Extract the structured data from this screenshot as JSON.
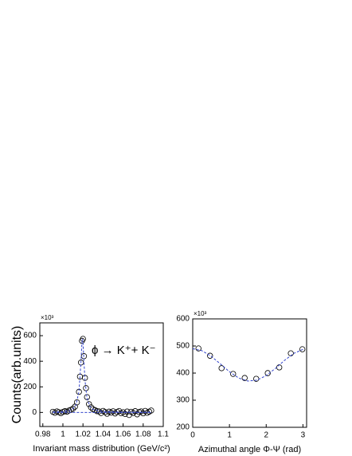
{
  "chart_data": [
    {
      "type": "scatter",
      "xlabel": "Invariant mass distribution (GeV/c²)",
      "ylabel": "Counts(arb.units)",
      "y_multiplier": "×10³",
      "annotation": "ϕ → K⁺+ K⁻",
      "xlim": [
        0.977,
        1.1
      ],
      "xticks": [
        0.98,
        1,
        1.02,
        1.04,
        1.06,
        1.08,
        1.1
      ],
      "ylim": [
        -110,
        700
      ],
      "yticks": [
        0,
        200,
        400,
        600
      ],
      "series": [
        {
          "marker": "circle",
          "color": "#000000",
          "x": [
            0.99,
            0.992,
            0.994,
            0.996,
            0.998,
            1.0,
            1.002,
            1.004,
            1.006,
            1.008,
            1.01,
            1.012,
            1.014,
            1.016,
            1.017,
            1.018,
            1.019,
            1.02,
            1.021,
            1.022,
            1.023,
            1.024,
            1.026,
            1.028,
            1.03,
            1.032,
            1.034,
            1.036,
            1.038,
            1.04,
            1.042,
            1.044,
            1.046,
            1.048,
            1.05,
            1.052,
            1.054,
            1.056,
            1.058,
            1.06,
            1.062,
            1.064,
            1.066,
            1.068,
            1.07,
            1.072,
            1.074,
            1.076,
            1.078,
            1.08,
            1.082,
            1.084,
            1.086,
            1.088
          ],
          "values": [
            5,
            -3,
            8,
            2,
            -6,
            4,
            10,
            6,
            15,
            20,
            29,
            45,
            79,
            161,
            280,
            390,
            560,
            575,
            440,
            270,
            190,
            120,
            65,
            40,
            25,
            18,
            10,
            8,
            -5,
            12,
            3,
            -10,
            6,
            -2,
            9,
            -8,
            4,
            11,
            -6,
            2,
            -12,
            7,
            -20,
            5,
            -4,
            10,
            -15,
            3,
            8,
            -7,
            12,
            -3,
            6,
            15
          ]
        },
        {
          "line_style": "dashed",
          "color": "#3344cc",
          "x": [
            0.99,
            1.0,
            1.006,
            1.01,
            1.013,
            1.016,
            1.018,
            1.019,
            1.0195,
            1.02,
            1.021,
            1.022,
            1.024,
            1.027,
            1.03,
            1.04,
            1.06,
            1.088
          ],
          "values": [
            3,
            7,
            15,
            29,
            59,
            163,
            394,
            548,
            575,
            548,
            394,
            251,
            111,
            46,
            24,
            7,
            2,
            1
          ]
        },
        {
          "line_style": "dashed",
          "color": "#3344cc",
          "x": [
            0.99,
            1.088
          ],
          "values": [
            0,
            0
          ]
        }
      ]
    },
    {
      "type": "scatter",
      "xlabel": "Azimuthal angle  Φ-Ψ (rad)",
      "y_multiplier": "×10³",
      "xlim": [
        0,
        3.1
      ],
      "xticks": [
        0,
        1,
        2,
        3
      ],
      "ylim": [
        200,
        600
      ],
      "yticks": [
        200,
        300,
        400,
        500,
        600
      ],
      "series": [
        {
          "marker": "circle",
          "color": "#000000",
          "x": [
            0.157,
            0.471,
            0.785,
            1.1,
            1.414,
            1.728,
            2.042,
            2.356,
            2.67,
            2.985
          ],
          "values": [
            491,
            464,
            418,
            397,
            382,
            379,
            400,
            421,
            473,
            488
          ]
        },
        {
          "line_style": "dashed",
          "color": "#3344cc",
          "x": [
            0,
            0.25,
            0.5,
            0.75,
            1.0,
            1.25,
            1.5,
            1.75,
            2.0,
            2.25,
            2.5,
            2.75,
            3.0
          ],
          "values": [
            490,
            482.7,
            462.4,
            434.2,
            405,
            381.9,
            370.6,
            373.8,
            390.8,
            417.4,
            447,
            472.5,
            487.6
          ]
        }
      ]
    }
  ]
}
